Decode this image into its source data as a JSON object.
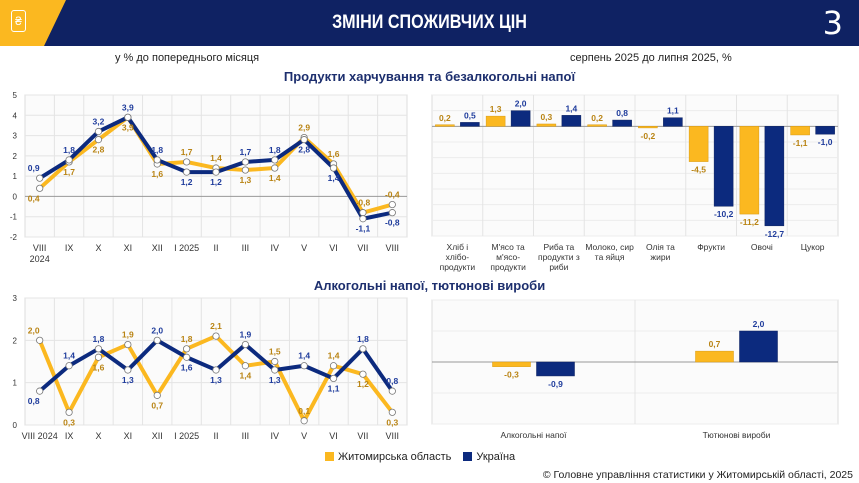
{
  "header": {
    "title": "ЗМІНИ СПОЖИВЧИХ ЦІН",
    "page_number": "3",
    "logo_icon": "hryvnia-price-tag-icon"
  },
  "subtitles": {
    "left": "у % до попереднього місяця",
    "right": "серпень 2025 до липня 2025, %"
  },
  "sections": {
    "food": "Продукти харчування та безалкогольні напої",
    "alcohol": "Алкогольні напої, тютюнові вироби"
  },
  "legend": [
    {
      "label": "Житомирська область",
      "color": "#fbb820"
    },
    {
      "label": "Україна",
      "color": "#0c2a7e"
    }
  ],
  "footer": "© Головне управління статистики у Житомирській області, 2025",
  "chart_data": [
    {
      "type": "line",
      "title": "Продукти харчування та безалкогольні напої",
      "categories": [
        "VIII\n2024",
        "IX",
        "X",
        "XI",
        "XII",
        "I 2025",
        "II",
        "III",
        "IV",
        "V",
        "VI",
        "VII",
        "VIII"
      ],
      "ylim": [
        -2,
        5
      ],
      "yticks": [
        "-2",
        "-1",
        "0",
        "1",
        "2",
        "3",
        "4",
        "5"
      ],
      "series": [
        {
          "name": "Житомирська область",
          "values": [
            0.4,
            1.7,
            2.8,
            3.9,
            1.6,
            1.7,
            1.4,
            1.3,
            1.4,
            2.9,
            1.6,
            -0.8,
            -0.4
          ],
          "labels": [
            "0,4",
            "1,7",
            "2,8",
            "3,9",
            "1,6",
            "1,7",
            "1,4",
            "1,3",
            "1,4",
            "2,9",
            "1,6",
            "-0,8",
            "-0,4"
          ]
        },
        {
          "name": "Україна",
          "values": [
            0.9,
            1.8,
            3.2,
            3.9,
            1.8,
            1.2,
            1.2,
            1.7,
            1.8,
            2.8,
            1.4,
            -1.1,
            -0.8
          ],
          "labels": [
            "0,9",
            "1,8",
            "3,2",
            "3,9",
            "1,8",
            "1,2",
            "1,2",
            "1,7",
            "1,8",
            "2,8",
            "1,4",
            "-1,1",
            "-0,8"
          ]
        }
      ]
    },
    {
      "type": "bar",
      "title": "Продукти харчування та безалкогольні напої",
      "categories": [
        "Хліб і хлібо-продукти",
        "М'ясо та м'ясо-продукти",
        "Риба та продукти з риби",
        "Молоко, сир та яйця",
        "Олія та жири",
        "Фрукти",
        "Овочі",
        "Цукор"
      ],
      "ylim": [
        -14,
        4
      ],
      "series": [
        {
          "name": "Житомирська область",
          "values": [
            0.2,
            1.3,
            0.3,
            0.2,
            -0.2,
            -4.5,
            -11.2,
            -1.1
          ],
          "labels": [
            "0,2",
            "1,3",
            "0,3",
            "0,2",
            "-0,2",
            "-4,5",
            "-11,2",
            "-1,1"
          ]
        },
        {
          "name": "Україна",
          "values": [
            0.5,
            2.0,
            1.4,
            0.8,
            1.1,
            -10.2,
            -12.7,
            -1.0
          ],
          "labels": [
            "0,5",
            "2,0",
            "1,4",
            "0,8",
            "1,1",
            "-10,2",
            "-12,7",
            "-1,0"
          ]
        }
      ]
    },
    {
      "type": "line",
      "title": "Алкогольні напої, тютюнові вироби",
      "categories": [
        "VIII 2024",
        "IX",
        "X",
        "XI",
        "XII",
        "I 2025",
        "II",
        "III",
        "IV",
        "V",
        "VI",
        "VII",
        "VIII"
      ],
      "ylim": [
        0,
        3
      ],
      "yticks": [
        "0",
        "1",
        "2",
        "3"
      ],
      "series": [
        {
          "name": "Житомирська область",
          "values": [
            2.0,
            0.3,
            1.6,
            1.9,
            0.7,
            1.8,
            2.1,
            1.4,
            1.5,
            0.1,
            1.4,
            1.2,
            0.3
          ],
          "labels": [
            "2,0",
            "0,3",
            "1,6",
            "1,9",
            "0,7",
            "1,8",
            "2,1",
            "1,4",
            "1,5",
            "0,1",
            "1,4",
            "1,2",
            "0,3"
          ]
        },
        {
          "name": "Україна",
          "values": [
            0.8,
            1.4,
            1.8,
            1.3,
            2.0,
            1.6,
            1.3,
            1.9,
            1.3,
            1.4,
            1.1,
            1.8,
            0.8
          ],
          "labels": [
            "0,8",
            "1,4",
            "1,8",
            "1,3",
            "2,0",
            "1,6",
            "1,3",
            "1,9",
            "1,3",
            "1,4",
            "1,1",
            "1,8",
            "0,8"
          ]
        }
      ]
    },
    {
      "type": "bar",
      "title": "Алкогольні напої, тютюнові вироби",
      "categories": [
        "Алкогольні напої",
        "Тютюнові вироби"
      ],
      "ylim": [
        -4,
        4
      ],
      "series": [
        {
          "name": "Житомирська область",
          "values": [
            -0.3,
            0.7
          ],
          "labels": [
            "-0,3",
            "0,7"
          ]
        },
        {
          "name": "Україна",
          "values": [
            -0.9,
            2.0
          ],
          "labels": [
            "-0,9",
            "2,0"
          ]
        }
      ]
    }
  ]
}
